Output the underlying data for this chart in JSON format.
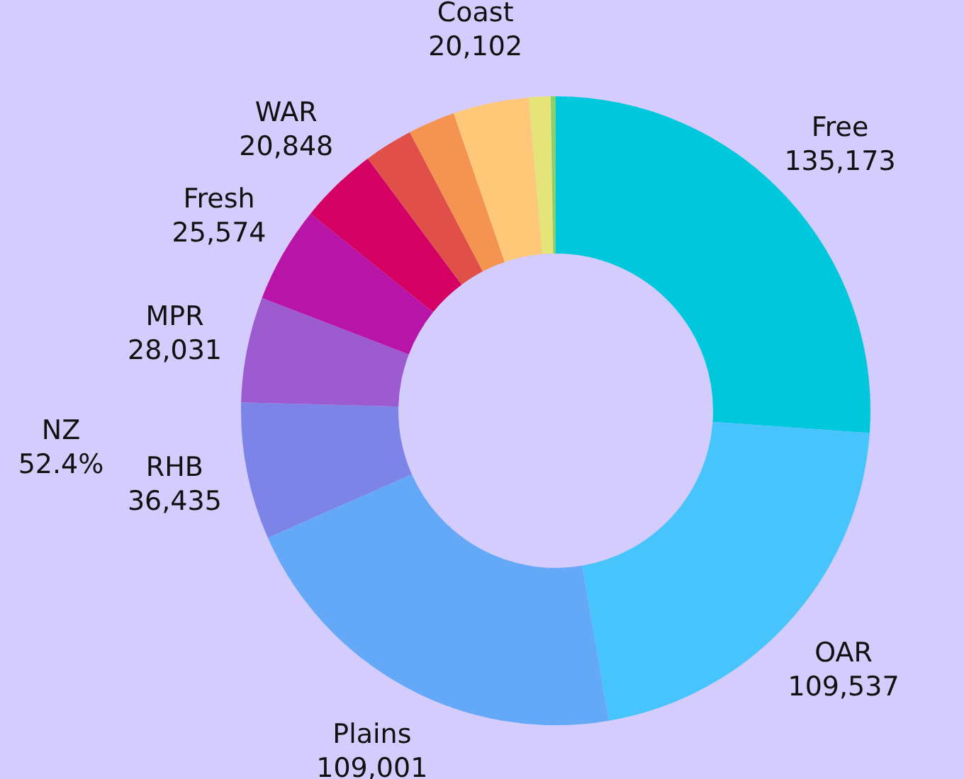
{
  "chart_data": {
    "type": "donut",
    "categories": [
      "Free",
      "OAR",
      "Plains",
      "RHB",
      "MPR",
      "Fresh",
      "WAR",
      null,
      null,
      "Coast",
      null,
      null
    ],
    "values": [
      135173,
      109537,
      109001,
      36435,
      28031,
      25574,
      20848,
      13000,
      12500,
      20102,
      5800,
      1300
    ],
    "value_labels": [
      "135,173",
      "109,537",
      "109,001",
      "36,435",
      "28,031",
      "25,574",
      "20,848",
      null,
      null,
      "20,102",
      null,
      null
    ],
    "colors": [
      "#00c8dc",
      "#48c4fc",
      "#64a8f8",
      "#7c84e8",
      "#9c5cd0",
      "#b814a8",
      "#d40064",
      "#e05048",
      "#f49450",
      "#fec878",
      "#e4e478",
      "#88d070"
    ],
    "annotations": [
      "NZ\n52.4%"
    ],
    "legend": false
  }
}
